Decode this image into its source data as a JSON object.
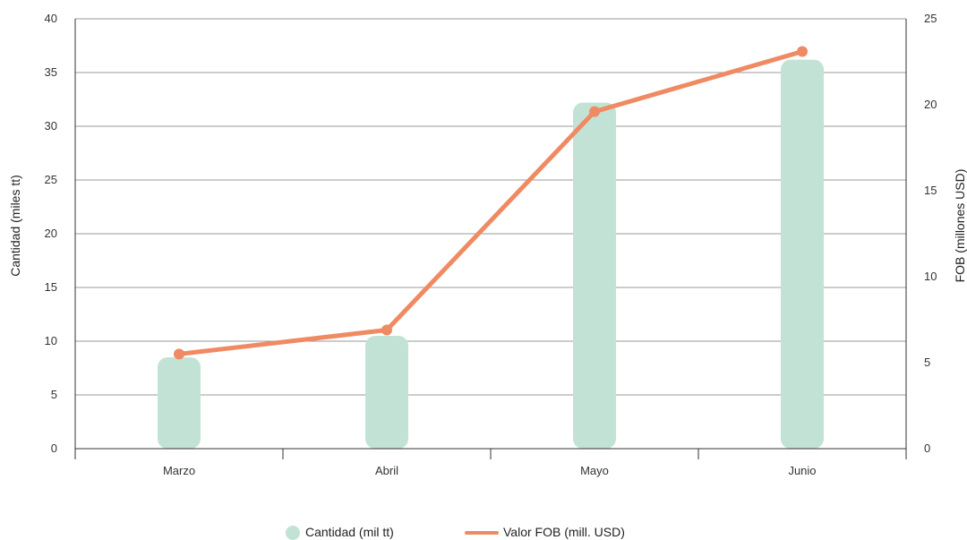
{
  "chart_data": {
    "type": "bar",
    "categories": [
      "Marzo",
      "Abril",
      "Mayo",
      "Junio"
    ],
    "series": [
      {
        "name": "Cantidad (mil tt)",
        "type": "bar",
        "axis": "left",
        "values": [
          8.5,
          10.5,
          32.2,
          36.2
        ],
        "color": "#c3e2d6"
      },
      {
        "name": "Valor FOB (mill. USD)",
        "type": "line",
        "axis": "right",
        "values": [
          5.5,
          6.9,
          19.6,
          23.1
        ],
        "color": "#ef8a62"
      }
    ],
    "ylabel_left": "Cantidad (miles tt)",
    "ylabel_right": "FOB (millones USD)",
    "ylim_left": [
      0,
      40
    ],
    "yticks_left": [
      0,
      5,
      10,
      15,
      20,
      25,
      30,
      35,
      40
    ],
    "ylim_right": [
      0,
      25
    ],
    "yticks_right": [
      0,
      5,
      10,
      15,
      20,
      25
    ],
    "grid": true,
    "legend_position": "bottom"
  }
}
